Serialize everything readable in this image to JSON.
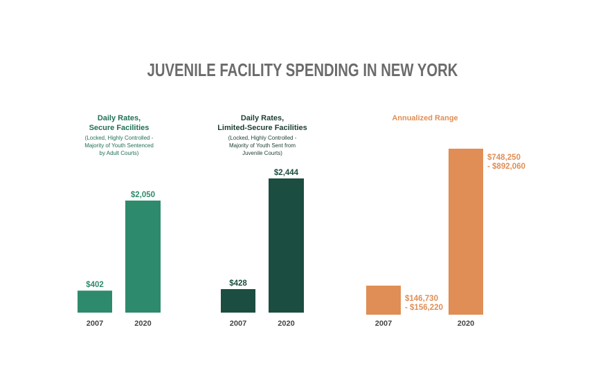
{
  "title": "JUVENILE FACILITY SPENDING IN NEW YORK",
  "chart_data": [
    {
      "type": "bar",
      "title": "Daily Rates,\nSecure Facilities",
      "note": "(Locked, Highly Controlled -\nMajority of Youth Sentenced\nby Adult Courts)",
      "categories": [
        "2007",
        "2020"
      ],
      "values": [
        402,
        2050
      ],
      "data_labels": [
        "$402",
        "$2,050"
      ],
      "color": "#2e8a6d",
      "title_color": "#1f6f57",
      "ylim": [
        0,
        2700
      ],
      "grid": false
    },
    {
      "type": "bar",
      "title": "Daily Rates,\nLimited-Secure Facilities",
      "note": "(Locked, Highly Controlled -\nMajority of Youth Sent from\nJuvenile Courts)",
      "categories": [
        "2007",
        "2020"
      ],
      "values": [
        428,
        2444
      ],
      "data_labels": [
        "$428",
        "$2,444"
      ],
      "color": "#1b4d40",
      "title_color": "#1b3d33",
      "ylim": [
        0,
        2700
      ],
      "grid": false
    },
    {
      "type": "bar",
      "title": "Annualized Range",
      "note": "",
      "categories": [
        "2007",
        "2020"
      ],
      "values": [
        156220,
        892060
      ],
      "data_labels": [
        "$146,730\n- $156,220",
        "$748,250\n- $892,060"
      ],
      "color": "#e08e55",
      "title_color": "#e08e55",
      "ylim": [
        0,
        892060
      ],
      "grid": false
    }
  ]
}
